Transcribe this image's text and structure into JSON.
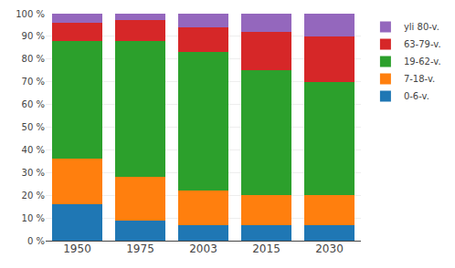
{
  "chart_data": {
    "type": "bar",
    "stacked": true,
    "categories": [
      "1950",
      "1975",
      "2003",
      "2015",
      "2030"
    ],
    "series": [
      {
        "name": "0-6-v.",
        "values": [
          16,
          9,
          7,
          7,
          7
        ]
      },
      {
        "name": "7-18-v.",
        "values": [
          20,
          19,
          15,
          13,
          13
        ]
      },
      {
        "name": "19-62-v.",
        "values": [
          52,
          60,
          61,
          55,
          50
        ]
      },
      {
        "name": "63-79-v.",
        "values": [
          8,
          9,
          11,
          17,
          20
        ]
      },
      {
        "name": "yli 80-v.",
        "values": [
          4,
          3,
          6,
          8,
          10
        ]
      }
    ],
    "ylim": [
      0,
      100
    ],
    "yticks": [
      {
        "value": 0,
        "label": "0 %"
      },
      {
        "value": 10,
        "label": "10 %"
      },
      {
        "value": 20,
        "label": "20 %"
      },
      {
        "value": 30,
        "label": "30 %"
      },
      {
        "value": 40,
        "label": "40 %"
      },
      {
        "value": 50,
        "label": "50 %"
      },
      {
        "value": 60,
        "label": "60 %"
      },
      {
        "value": 70,
        "label": "70 %"
      },
      {
        "value": 80,
        "label": "80 %"
      },
      {
        "value": 90,
        "label": "90 %"
      },
      {
        "value": 100,
        "label": "100 %"
      }
    ],
    "grid": true,
    "legend": "upper right"
  }
}
